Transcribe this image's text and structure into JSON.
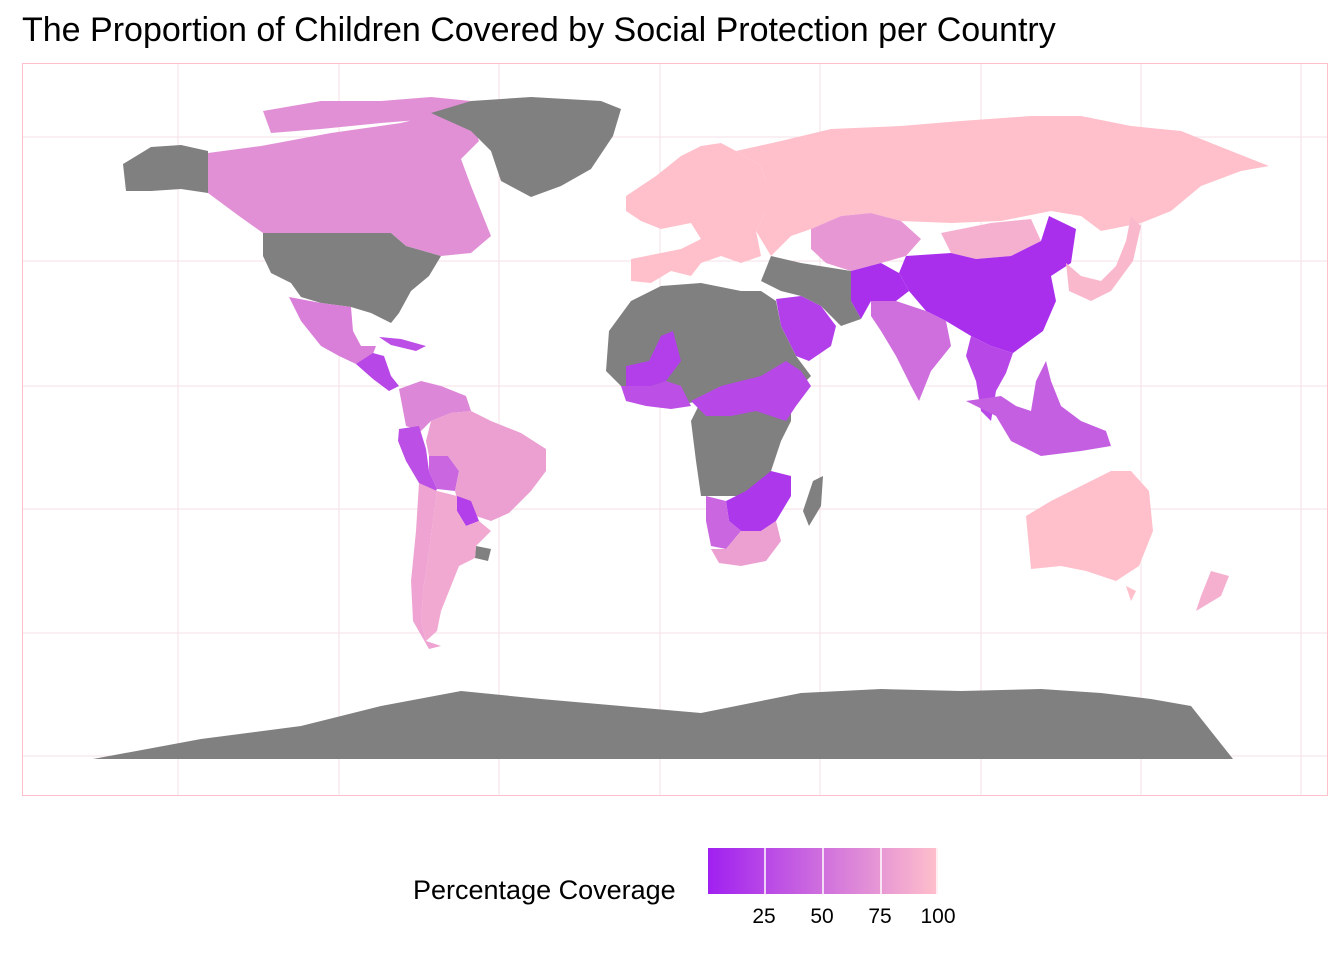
{
  "chart_data": {
    "type": "choropleth",
    "title": "The Proportion of Children Covered by Social Protection per Country",
    "legend": {
      "title": "Percentage Coverage",
      "position": "bottom",
      "color_low": "#a020f0",
      "color_high": "#ffc0cb",
      "ticks": [
        "25",
        "50",
        "75",
        "100"
      ],
      "tick_values": [
        25,
        50,
        75,
        100
      ],
      "range": [
        1,
        100
      ]
    },
    "missing_color": "#808080",
    "panel_border_color": "#ffc0cb",
    "regions": [
      {
        "name": "Canada",
        "value": 70
      },
      {
        "name": "United States",
        "value": null
      },
      {
        "name": "Mexico",
        "value": 60
      },
      {
        "name": "Central America",
        "value": 25
      },
      {
        "name": "Caribbean",
        "value": 30
      },
      {
        "name": "Colombia / Venezuela",
        "value": 65
      },
      {
        "name": "Ecuador / Peru",
        "value": 30
      },
      {
        "name": "Bolivia",
        "value": 45
      },
      {
        "name": "Brazil",
        "value": 80
      },
      {
        "name": "Paraguay",
        "value": 20
      },
      {
        "name": "Uruguay",
        "value": null
      },
      {
        "name": "Argentina",
        "value": 85
      },
      {
        "name": "Chile",
        "value": 82
      },
      {
        "name": "Greenland",
        "value": null
      },
      {
        "name": "Europe",
        "value": 100
      },
      {
        "name": "Russia",
        "value": 100
      },
      {
        "name": "Kazakhstan",
        "value": 75
      },
      {
        "name": "Mongolia",
        "value": 90
      },
      {
        "name": "China",
        "value": 10
      },
      {
        "name": "India",
        "value": 50
      },
      {
        "name": "Pakistan / Afghanistan",
        "value": 10
      },
      {
        "name": "Iran / Middle East",
        "value": null
      },
      {
        "name": "Saudi Arabia",
        "value": 20
      },
      {
        "name": "Southeast Asia",
        "value": 25
      },
      {
        "name": "Indonesia / Philippines",
        "value": 40
      },
      {
        "name": "Japan / Korea",
        "value": 95
      },
      {
        "name": "Australia",
        "value": 100
      },
      {
        "name": "New Zealand",
        "value": 90
      },
      {
        "name": "North / Central Africa",
        "value": null
      },
      {
        "name": "Mali",
        "value": 20
      },
      {
        "name": "West Africa coast",
        "value": 30
      },
      {
        "name": "Ethiopia / Sahel",
        "value": 25
      },
      {
        "name": "Southern Africa central",
        "value": 15
      },
      {
        "name": "Namibia / Botswana",
        "value": 45
      },
      {
        "name": "South Africa",
        "value": 80
      },
      {
        "name": "Madagascar",
        "value": null
      },
      {
        "name": "Antarctica",
        "value": null
      }
    ]
  }
}
